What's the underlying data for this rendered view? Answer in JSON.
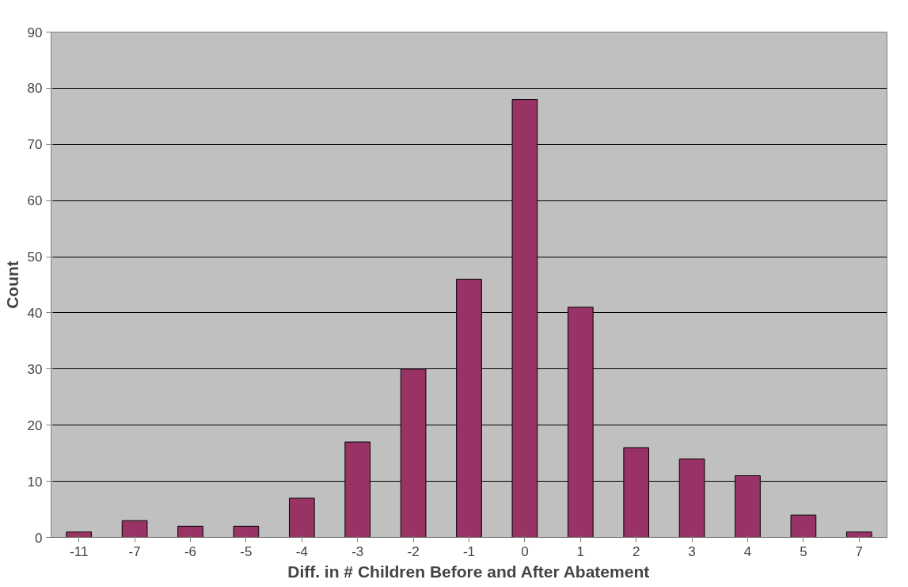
{
  "chart_data": {
    "type": "bar",
    "xlabel": "Diff. in # Children Before and After Abatement",
    "ylabel": "Count",
    "categories": [
      "-11",
      "-7",
      "-6",
      "-5",
      "-4",
      "-3",
      "-2",
      "-1",
      "0",
      "1",
      "2",
      "3",
      "4",
      "5",
      "7"
    ],
    "values": [
      1,
      3,
      2,
      2,
      7,
      17,
      30,
      46,
      78,
      41,
      16,
      14,
      11,
      4,
      1
    ],
    "color": "#993366",
    "ylim": [
      0,
      90
    ],
    "yticks": [
      0,
      10,
      20,
      30,
      40,
      50,
      60,
      70,
      80,
      90
    ],
    "grid": "y"
  }
}
